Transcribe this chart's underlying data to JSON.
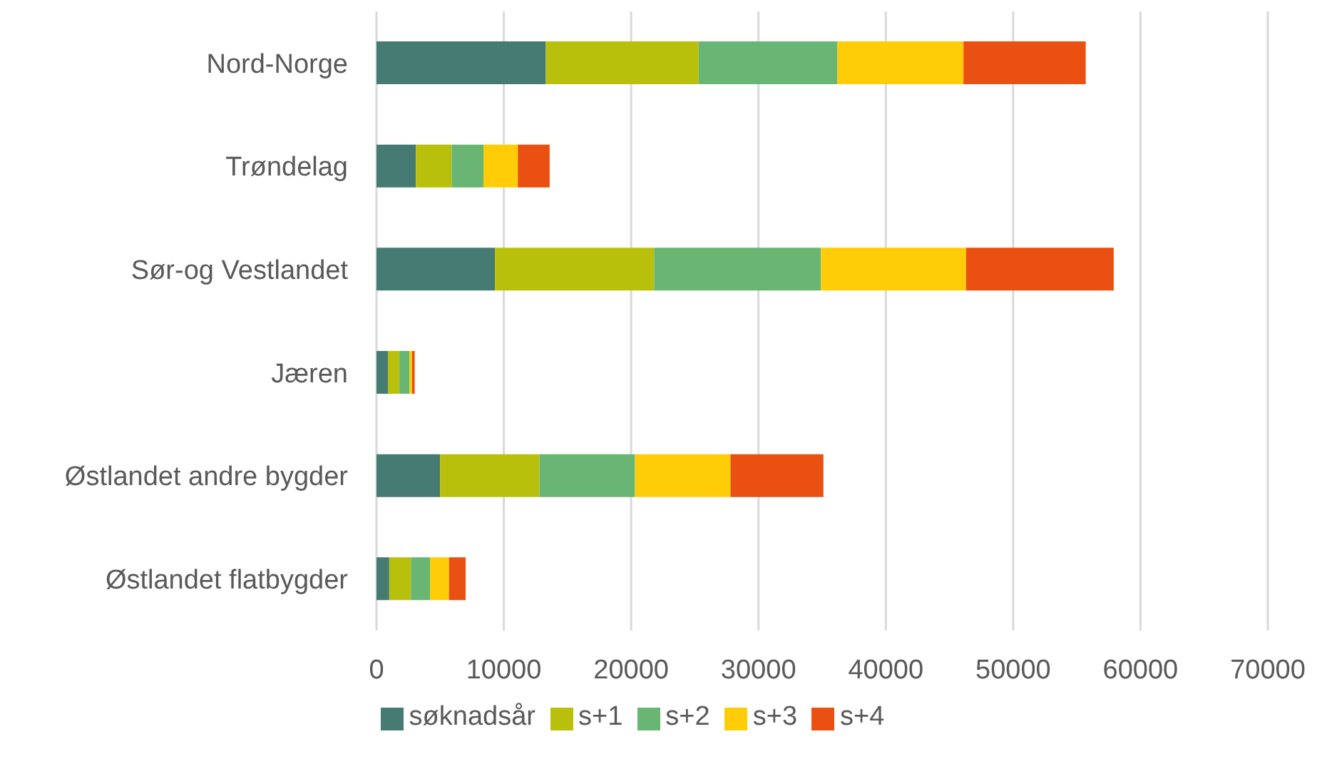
{
  "chart_data": {
    "type": "bar",
    "orientation": "horizontal",
    "stacked": true,
    "categories": [
      "Nord-Norge",
      "Trøndelag",
      "Sør-og Vestlandet",
      "Jæren",
      "Østlandet andre bygder",
      "Østlandet flatbygder"
    ],
    "series": [
      {
        "name": "søknadsår",
        "color": "#467b73",
        "values": [
          13300,
          3100,
          9300,
          900,
          5000,
          1000
        ]
      },
      {
        "name": "s+1",
        "color": "#b9c00b",
        "values": [
          12000,
          2800,
          12500,
          900,
          7800,
          1700
        ]
      },
      {
        "name": "s+2",
        "color": "#69b574",
        "values": [
          10900,
          2500,
          13100,
          800,
          7500,
          1500
        ]
      },
      {
        "name": "s+3",
        "color": "#ffcd08",
        "values": [
          9900,
          2700,
          11400,
          200,
          7500,
          1500
        ]
      },
      {
        "name": "s+4",
        "color": "#e95011",
        "values": [
          9600,
          2500,
          11600,
          200,
          7300,
          1300
        ]
      }
    ],
    "xlim": [
      0,
      70000
    ],
    "xticks": [
      0,
      10000,
      20000,
      30000,
      40000,
      50000,
      60000,
      70000
    ],
    "grid": "x",
    "legend": "bottom"
  }
}
